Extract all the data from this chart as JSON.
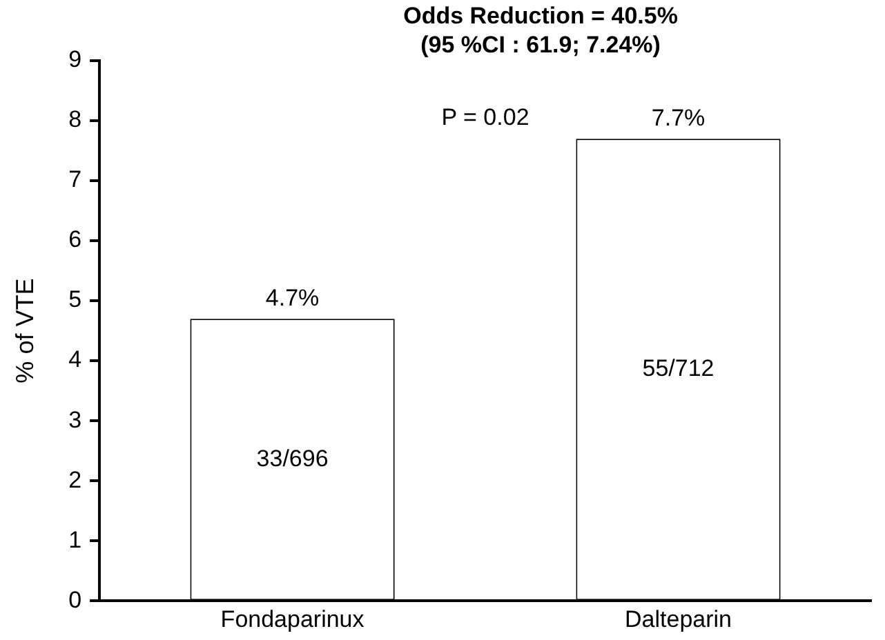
{
  "chart_data": {
    "type": "bar",
    "title": "Odds Reduction = 40.5%",
    "subtitle": "(95 %CI : 61.9; 7.24%)",
    "ylabel": "% of VTE",
    "categories": [
      "Fondaparinux",
      "Dalteparin"
    ],
    "values": [
      4.7,
      7.7
    ],
    "color": "#ffffff",
    "value_labels": [
      "4.7%",
      "7.7%"
    ],
    "ylim": [
      0,
      9
    ],
    "yticks": [
      0,
      1,
      2,
      3,
      4,
      5,
      6,
      7,
      8,
      9
    ],
    "grid": false,
    "legend": false,
    "annotations": [
      "P = 0.02",
      "33/696",
      "55/712"
    ]
  }
}
